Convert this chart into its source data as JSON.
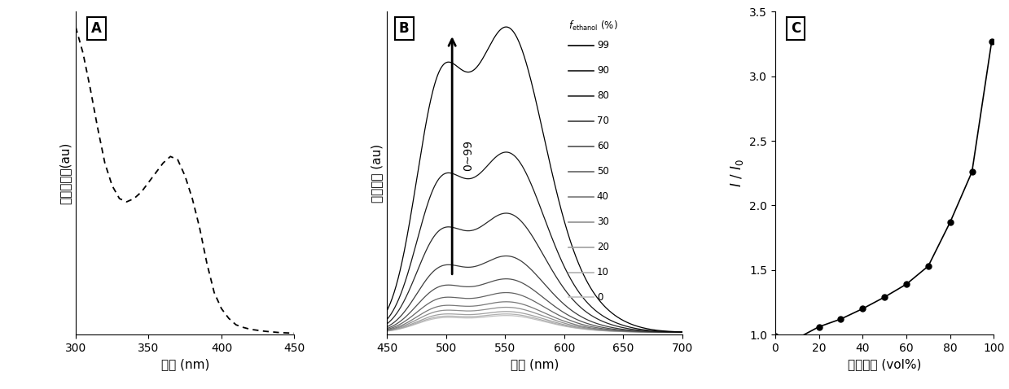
{
  "panel_A": {
    "label": "A",
    "xlabel": "波长 (nm)",
    "ylabel": "归一化吸收(au)",
    "xlim": [
      300,
      450
    ],
    "x": [
      300,
      305,
      310,
      315,
      320,
      325,
      330,
      335,
      340,
      345,
      350,
      355,
      360,
      365,
      370,
      375,
      380,
      385,
      390,
      395,
      400,
      405,
      410,
      415,
      420,
      425,
      430,
      435,
      440,
      445,
      450
    ],
    "y": [
      0.95,
      0.87,
      0.76,
      0.64,
      0.53,
      0.46,
      0.42,
      0.41,
      0.42,
      0.44,
      0.47,
      0.5,
      0.53,
      0.55,
      0.54,
      0.49,
      0.42,
      0.33,
      0.22,
      0.13,
      0.08,
      0.05,
      0.03,
      0.022,
      0.016,
      0.013,
      0.01,
      0.008,
      0.006,
      0.005,
      0.004
    ]
  },
  "panel_B": {
    "label": "B",
    "xlabel": "波长 (nm)",
    "ylabel": "荧光强度 (au)",
    "xlim": [
      450,
      700
    ],
    "arrow_label": "0~99",
    "fractions": [
      0,
      10,
      20,
      30,
      40,
      50,
      60,
      70,
      80,
      90,
      99
    ],
    "peak_heights_main": [
      0.055,
      0.06,
      0.068,
      0.082,
      0.1,
      0.13,
      0.175,
      0.25,
      0.39,
      0.59,
      1.0
    ],
    "colors": [
      "#c0c0c0",
      "#b0b0b0",
      "#a0a0a0",
      "#909090",
      "#787878",
      "#646464",
      "#505050",
      "#3c3c3c",
      "#282828",
      "#141414",
      "#000000"
    ]
  },
  "panel_C": {
    "label": "C",
    "xlabel": "乙醇含量 (vol%)",
    "xlim": [
      0,
      100
    ],
    "ylim": [
      1.0,
      3.5
    ],
    "yticks": [
      1.0,
      1.5,
      2.0,
      2.5,
      3.0,
      3.5
    ],
    "xticks": [
      0,
      20,
      40,
      60,
      80,
      100
    ],
    "x": [
      0,
      10,
      20,
      30,
      40,
      50,
      60,
      70,
      80,
      90,
      99
    ],
    "y": [
      0.99,
      0.97,
      1.06,
      1.12,
      1.2,
      1.29,
      1.39,
      1.53,
      1.87,
      2.26,
      3.27
    ]
  }
}
